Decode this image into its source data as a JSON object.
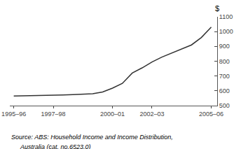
{
  "chart_data": {
    "type": "line",
    "x": [
      0,
      0.5,
      1,
      1.5,
      2,
      2.5,
      3,
      3.5,
      4,
      4.5,
      5,
      5.5,
      6,
      6.5,
      7,
      7.5,
      8,
      8.5,
      9,
      9.5,
      10
    ],
    "values": [
      565,
      566,
      566,
      568,
      570,
      572,
      574,
      576,
      580,
      592,
      618,
      650,
      720,
      755,
      795,
      828,
      855,
      880,
      910,
      960,
      1030
    ],
    "color": "#333333",
    "xlim": [
      -0.2,
      10.3
    ],
    "xticks": [
      {
        "value": 0,
        "label": "1995–96"
      },
      {
        "value": 2,
        "label": "1997–98"
      },
      {
        "value": 5,
        "label": "2000–01"
      },
      {
        "value": 7,
        "label": "2002–03"
      },
      {
        "value": 10,
        "label": "2005–06"
      }
    ],
    "ylim": [
      500,
      1100
    ],
    "yticks": [
      500,
      600,
      700,
      800,
      900,
      1000,
      1100
    ],
    "ylabel": "$",
    "annotations": [
      "Source: ABS: Household Income and Income Distribution,",
      "Australia (cat. no.6523.0)"
    ],
    "grid": false
  }
}
